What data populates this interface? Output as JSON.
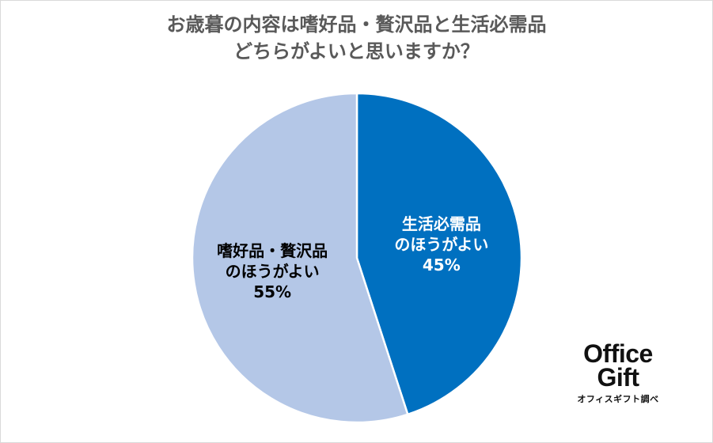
{
  "title_lines": [
    "お歳暮の内容は嗜好品・贅沢品と生活必需品",
    "どちらがよいと思いますか？"
  ],
  "chart_data": {
    "type": "pie",
    "title": "お歳暮の内容は嗜好品・贅沢品と生活必需品どちらがよいと思いますか？",
    "categories": [
      "生活必需品のほうがよい",
      "嗜好品・贅沢品のほうがよい"
    ],
    "values": [
      45,
      55
    ],
    "unit": "%",
    "slices": [
      {
        "label_lines": [
          "生活必需品",
          "のほうがよい",
          "45%"
        ],
        "value": 45,
        "color": "#0070c0",
        "text_color": "#ffffff"
      },
      {
        "label_lines": [
          "嗜好品・贅沢品",
          "のほうがよい",
          "55%"
        ],
        "value": 55,
        "color": "#b4c7e7",
        "text_color": "#000000"
      }
    ],
    "start_angle_deg": 0,
    "direction": "clockwise",
    "legend": "none"
  },
  "logo": {
    "line1": "Office",
    "line2": "Gift",
    "caption": "オフィスギフト調べ"
  }
}
